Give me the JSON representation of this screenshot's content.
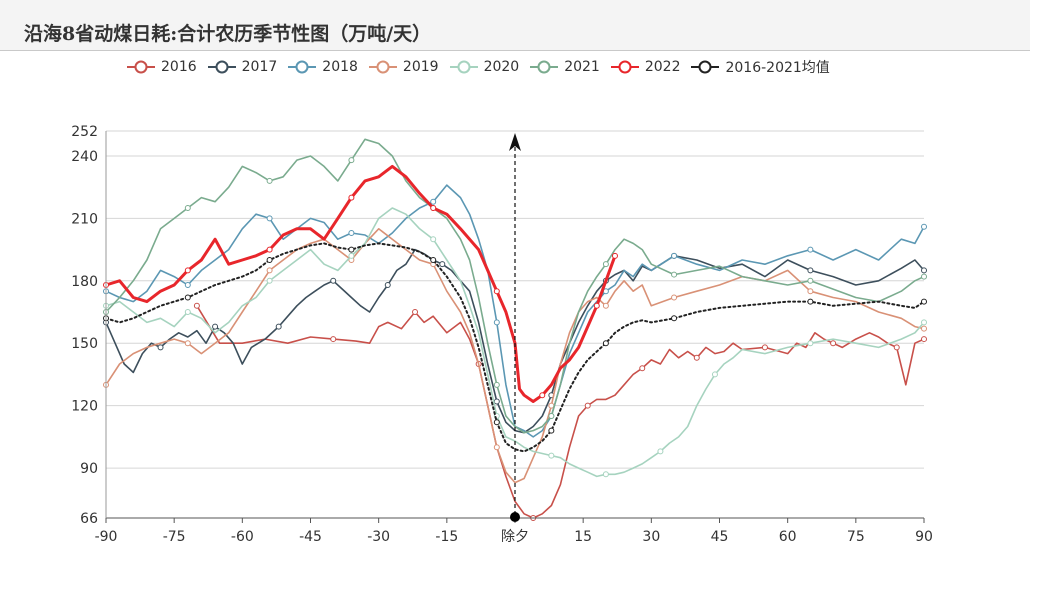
{
  "title": "沿海8省动煤日耗:合计农历季节性图（万吨/天）",
  "chart_data": {
    "type": "line",
    "title": "沿海8省动煤日耗:合计农历季节性图（万吨/天）",
    "xlim": [
      -90,
      90
    ],
    "ylim": [
      66,
      252
    ],
    "x_ticks": [
      {
        "v": -90,
        "label": "-90"
      },
      {
        "v": -75,
        "label": "-75"
      },
      {
        "v": -60,
        "label": "-60"
      },
      {
        "v": -45,
        "label": "-45"
      },
      {
        "v": -30,
        "label": "-30"
      },
      {
        "v": -15,
        "label": "-15"
      },
      {
        "v": 0,
        "label": "除夕"
      },
      {
        "v": 15,
        "label": "15"
      },
      {
        "v": 30,
        "label": "30"
      },
      {
        "v": 45,
        "label": "45"
      },
      {
        "v": 60,
        "label": "60"
      },
      {
        "v": 75,
        "label": "75"
      },
      {
        "v": 90,
        "label": "90"
      }
    ],
    "y_ticks": [
      66,
      90,
      120,
      150,
      180,
      210,
      240,
      252
    ],
    "grid": true,
    "legend_position": "top",
    "marker": {
      "x": 0,
      "label": "除夕"
    },
    "series": [
      {
        "name": "2016",
        "color": "#c8504a",
        "width": 1.6,
        "x": [
          -70,
          -65,
          -60,
          -55,
          -50,
          -45,
          -40,
          -35,
          -32,
          -30,
          -28,
          -25,
          -22,
          -20,
          -18,
          -15,
          -12,
          -10,
          -8,
          -6,
          -4,
          -2,
          0,
          2,
          4,
          6,
          8,
          10,
          12,
          14,
          16,
          18,
          20,
          22,
          24,
          26,
          28,
          30,
          32,
          34,
          36,
          38,
          40,
          42,
          44,
          46,
          48,
          50,
          55,
          60,
          62,
          64,
          66,
          68,
          70,
          72,
          75,
          78,
          80,
          82,
          84,
          86,
          88,
          90
        ],
        "y": [
          168,
          150,
          150,
          152,
          150,
          153,
          152,
          151,
          150,
          158,
          160,
          157,
          165,
          160,
          163,
          155,
          160,
          152,
          140,
          120,
          100,
          86,
          74,
          68,
          66,
          68,
          72,
          82,
          100,
          115,
          120,
          123,
          123,
          125,
          130,
          135,
          138,
          142,
          140,
          147,
          143,
          146,
          143,
          148,
          145,
          146,
          150,
          147,
          148,
          145,
          150,
          148,
          155,
          152,
          150,
          148,
          152,
          155,
          153,
          150,
          148,
          130,
          150,
          152
        ]
      },
      {
        "name": "2017",
        "color": "#3d4f5c",
        "width": 1.6,
        "x": [
          -90,
          -88,
          -86,
          -84,
          -82,
          -80,
          -78,
          -76,
          -74,
          -72,
          -70,
          -68,
          -66,
          -64,
          -62,
          -60,
          -58,
          -55,
          -52,
          -50,
          -48,
          -46,
          -44,
          -42,
          -40,
          -38,
          -36,
          -34,
          -32,
          -30,
          -28,
          -26,
          -24,
          -22,
          -20,
          -18,
          -16,
          -14,
          -12,
          -10,
          -8,
          -6,
          -4,
          -2,
          0,
          2,
          4,
          6,
          8,
          10,
          12,
          14,
          16,
          18,
          20,
          22,
          24,
          26,
          28,
          30,
          35,
          40,
          45,
          50,
          55,
          60,
          65,
          70,
          75,
          80,
          85,
          88,
          90
        ],
        "y": [
          160,
          150,
          140,
          136,
          145,
          150,
          148,
          152,
          155,
          153,
          156,
          150,
          158,
          155,
          150,
          140,
          148,
          152,
          158,
          163,
          168,
          172,
          175,
          178,
          180,
          176,
          172,
          168,
          165,
          172,
          178,
          185,
          188,
          195,
          193,
          190,
          188,
          185,
          180,
          175,
          160,
          140,
          122,
          112,
          108,
          107,
          110,
          115,
          125,
          140,
          150,
          160,
          168,
          175,
          180,
          183,
          185,
          180,
          187,
          185,
          192,
          190,
          186,
          188,
          182,
          190,
          185,
          182,
          178,
          180,
          186,
          190,
          185
        ]
      },
      {
        "name": "2018",
        "color": "#5b97b3",
        "width": 1.6,
        "x": [
          -90,
          -87,
          -84,
          -81,
          -78,
          -75,
          -72,
          -69,
          -66,
          -63,
          -60,
          -57,
          -54,
          -51,
          -48,
          -45,
          -42,
          -39,
          -36,
          -33,
          -30,
          -27,
          -24,
          -21,
          -18,
          -15,
          -12,
          -10,
          -8,
          -6,
          -4,
          -2,
          0,
          2,
          4,
          6,
          8,
          10,
          12,
          14,
          16,
          18,
          20,
          22,
          24,
          26,
          28,
          30,
          35,
          40,
          45,
          50,
          55,
          60,
          65,
          70,
          75,
          80,
          85,
          88,
          90
        ],
        "y": [
          175,
          172,
          170,
          175,
          185,
          182,
          178,
          185,
          190,
          195,
          205,
          212,
          210,
          200,
          205,
          210,
          208,
          200,
          203,
          202,
          198,
          203,
          210,
          215,
          218,
          226,
          220,
          212,
          200,
          185,
          160,
          130,
          110,
          108,
          105,
          108,
          115,
          130,
          145,
          155,
          165,
          170,
          175,
          178,
          185,
          182,
          188,
          185,
          192,
          188,
          185,
          190,
          188,
          192,
          195,
          190,
          195,
          190,
          200,
          198,
          206
        ]
      },
      {
        "name": "2019",
        "color": "#d99176",
        "width": 1.6,
        "x": [
          -90,
          -87,
          -84,
          -81,
          -78,
          -75,
          -72,
          -69,
          -66,
          -63,
          -60,
          -57,
          -54,
          -51,
          -48,
          -45,
          -42,
          -39,
          -36,
          -33,
          -30,
          -27,
          -24,
          -21,
          -18,
          -15,
          -12,
          -10,
          -8,
          -6,
          -4,
          -2,
          0,
          2,
          4,
          6,
          8,
          10,
          12,
          14,
          16,
          18,
          20,
          22,
          24,
          26,
          28,
          30,
          35,
          40,
          45,
          50,
          55,
          60,
          65,
          70,
          75,
          80,
          85,
          88,
          90
        ],
        "y": [
          130,
          140,
          145,
          148,
          150,
          152,
          150,
          145,
          150,
          155,
          165,
          175,
          185,
          190,
          195,
          198,
          200,
          195,
          190,
          198,
          205,
          200,
          195,
          190,
          188,
          175,
          165,
          155,
          140,
          120,
          100,
          88,
          83,
          85,
          95,
          105,
          120,
          140,
          155,
          165,
          170,
          172,
          168,
          175,
          180,
          175,
          178,
          168,
          172,
          175,
          178,
          182,
          180,
          185,
          175,
          172,
          170,
          165,
          162,
          158,
          157
        ]
      },
      {
        "name": "2020",
        "color": "#a6d3bf",
        "width": 1.6,
        "x": [
          -90,
          -87,
          -84,
          -81,
          -78,
          -75,
          -72,
          -69,
          -66,
          -63,
          -60,
          -57,
          -54,
          -51,
          -48,
          -45,
          -42,
          -39,
          -36,
          -33,
          -30,
          -27,
          -24,
          -21,
          -18,
          -15,
          -12,
          -10,
          -8,
          -6,
          -4,
          -2,
          0,
          2,
          4,
          6,
          8,
          10,
          12,
          14,
          16,
          18,
          20,
          22,
          24,
          26,
          28,
          30,
          32,
          34,
          36,
          38,
          40,
          42,
          44,
          46,
          48,
          50,
          55,
          60,
          65,
          70,
          75,
          80,
          85,
          88,
          90
        ],
        "y": [
          168,
          170,
          165,
          160,
          162,
          158,
          165,
          162,
          155,
          160,
          168,
          172,
          180,
          185,
          190,
          195,
          188,
          185,
          192,
          198,
          210,
          215,
          212,
          205,
          200,
          190,
          180,
          168,
          155,
          135,
          115,
          105,
          103,
          100,
          98,
          97,
          96,
          95,
          92,
          90,
          88,
          86,
          87,
          87,
          88,
          90,
          92,
          95,
          98,
          102,
          105,
          110,
          120,
          128,
          135,
          140,
          143,
          147,
          145,
          148,
          150,
          152,
          150,
          148,
          152,
          155,
          160
        ]
      },
      {
        "name": "2021",
        "color": "#7aab8e",
        "width": 1.6,
        "x": [
          -90,
          -87,
          -84,
          -81,
          -78,
          -75,
          -72,
          -69,
          -66,
          -63,
          -60,
          -57,
          -54,
          -51,
          -48,
          -45,
          -42,
          -39,
          -36,
          -33,
          -30,
          -27,
          -24,
          -21,
          -18,
          -15,
          -12,
          -10,
          -8,
          -6,
          -4,
          -2,
          0,
          2,
          4,
          6,
          8,
          10,
          12,
          14,
          16,
          18,
          20,
          22,
          24,
          26,
          28,
          30,
          35,
          40,
          45,
          50,
          55,
          60,
          65,
          70,
          75,
          80,
          85,
          88,
          90
        ],
        "y": [
          165,
          172,
          180,
          190,
          205,
          210,
          215,
          220,
          218,
          225,
          235,
          232,
          228,
          230,
          238,
          240,
          235,
          228,
          238,
          248,
          246,
          240,
          228,
          220,
          215,
          210,
          200,
          190,
          172,
          150,
          130,
          115,
          110,
          107,
          108,
          110,
          115,
          130,
          150,
          165,
          175,
          182,
          188,
          195,
          200,
          198,
          195,
          188,
          183,
          185,
          187,
          182,
          180,
          178,
          180,
          176,
          172,
          170,
          175,
          180,
          182
        ]
      },
      {
        "name": "2022",
        "color": "#e8262b",
        "width": 3,
        "x": [
          -90,
          -87,
          -84,
          -81,
          -78,
          -75,
          -72,
          -69,
          -66,
          -63,
          -60,
          -57,
          -54,
          -51,
          -48,
          -45,
          -42,
          -39,
          -36,
          -33,
          -30,
          -27,
          -24,
          -21,
          -18,
          -15,
          -12,
          -10,
          -8,
          -6,
          -4,
          -2,
          0,
          1,
          2,
          4,
          6,
          8,
          10,
          12,
          14,
          16,
          18,
          20,
          22
        ],
        "y": [
          178,
          180,
          172,
          170,
          175,
          178,
          185,
          190,
          200,
          188,
          190,
          192,
          195,
          202,
          205,
          205,
          200,
          210,
          220,
          228,
          230,
          235,
          230,
          222,
          215,
          212,
          205,
          200,
          195,
          185,
          175,
          165,
          150,
          128,
          125,
          122,
          125,
          130,
          138,
          142,
          148,
          158,
          168,
          180,
          192
        ]
      },
      {
        "name": "2016-2021均值",
        "color": "#222222",
        "width": 2,
        "dash": "2,3",
        "x": [
          -90,
          -87,
          -84,
          -81,
          -78,
          -75,
          -72,
          -69,
          -66,
          -63,
          -60,
          -57,
          -54,
          -51,
          -48,
          -45,
          -42,
          -39,
          -36,
          -33,
          -30,
          -27,
          -24,
          -21,
          -18,
          -15,
          -12,
          -10,
          -8,
          -6,
          -4,
          -2,
          0,
          2,
          4,
          6,
          8,
          10,
          12,
          14,
          16,
          18,
          20,
          22,
          24,
          26,
          28,
          30,
          35,
          40,
          45,
          50,
          55,
          60,
          65,
          70,
          75,
          80,
          85,
          88,
          90
        ],
        "y": [
          162,
          160,
          162,
          165,
          168,
          170,
          172,
          175,
          178,
          180,
          182,
          185,
          190,
          193,
          195,
          197,
          198,
          196,
          195,
          197,
          198,
          197,
          196,
          194,
          190,
          182,
          172,
          162,
          148,
          130,
          112,
          102,
          99,
          98,
          100,
          103,
          108,
          118,
          128,
          136,
          142,
          146,
          150,
          155,
          158,
          160,
          161,
          160,
          162,
          165,
          167,
          168,
          169,
          170,
          170,
          168,
          169,
          170,
          168,
          167,
          170
        ]
      }
    ]
  }
}
